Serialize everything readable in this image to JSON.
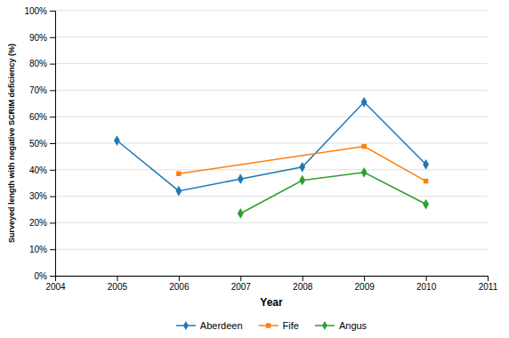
{
  "chart_data": {
    "type": "line",
    "xlabel": "Year",
    "ylabel": "Surveyed length with negative SCRIM deficiency (%)",
    "series": [
      {
        "name": "Aberdeen",
        "marker": "diamond",
        "x": [
          2005,
          2006,
          2007,
          2008,
          2009,
          2010
        ],
        "values": [
          0.51,
          0.32,
          0.365,
          0.41,
          0.655,
          0.42
        ]
      },
      {
        "name": "Fife",
        "marker": "square",
        "x": [
          2006,
          2009,
          2010
        ],
        "values": [
          0.385,
          0.488,
          0.357
        ]
      },
      {
        "name": "Angus",
        "marker": "diamond",
        "x": [
          2007,
          2008,
          2009,
          2010
        ],
        "values": [
          0.235,
          0.36,
          0.39,
          0.27
        ]
      }
    ],
    "xlim": [
      2004,
      2011
    ],
    "xticks": [
      2004,
      2005,
      2006,
      2007,
      2008,
      2009,
      2010,
      2011
    ],
    "ylim": [
      0,
      1.0
    ],
    "yticks": [
      {
        "value": 0.0,
        "label": "0%"
      },
      {
        "value": 0.1,
        "label": "10%"
      },
      {
        "value": 0.2,
        "label": "20%"
      },
      {
        "value": 0.3,
        "label": "30%"
      },
      {
        "value": 0.4,
        "label": "40%"
      },
      {
        "value": 0.5,
        "label": "50%"
      },
      {
        "value": 0.6,
        "label": "60%"
      },
      {
        "value": 0.7,
        "label": "70%"
      },
      {
        "value": 0.8,
        "label": "80%"
      },
      {
        "value": 0.9,
        "label": "90%"
      },
      {
        "value": 1.0,
        "label": "100%"
      }
    ],
    "grid": true,
    "legend": "bottom"
  }
}
